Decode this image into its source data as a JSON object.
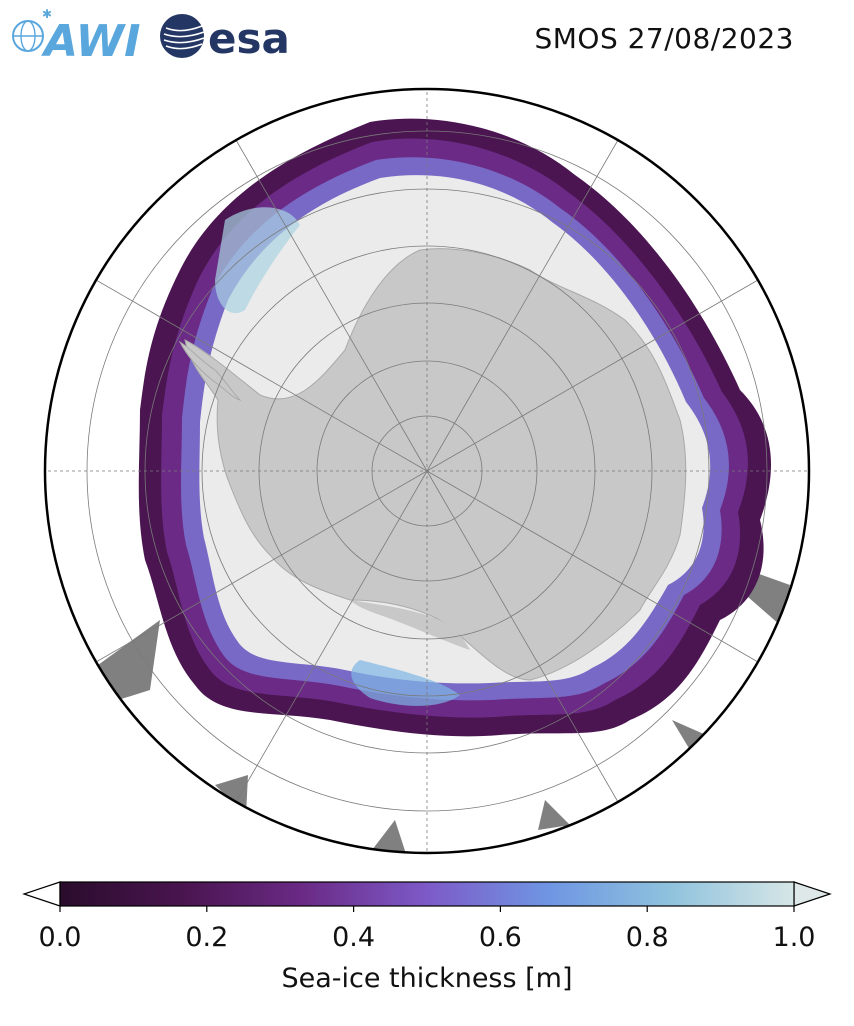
{
  "header": {
    "awi_logo_text": "AWI",
    "esa_logo_text": "esa",
    "title": "SMOS 27/08/2023"
  },
  "map": {
    "projection": "south-polar-stereographic",
    "land_color": "#c8c8c8",
    "no_data_color": "#808080",
    "open_ocean_color": "#ffffff",
    "graticule_color": "#7a7a7a"
  },
  "colorbar": {
    "label": "Sea-ice thickness [m]",
    "ticks": [
      "0.0",
      "0.2",
      "0.4",
      "0.6",
      "0.8",
      "1.0"
    ],
    "min": 0.0,
    "max": 1.0,
    "extend": "both",
    "colors": [
      "#2a0c2c",
      "#4a1550",
      "#6a2a85",
      "#7d5ac8",
      "#6f97e3",
      "#8fc2dd",
      "#d6e6e6"
    ]
  }
}
